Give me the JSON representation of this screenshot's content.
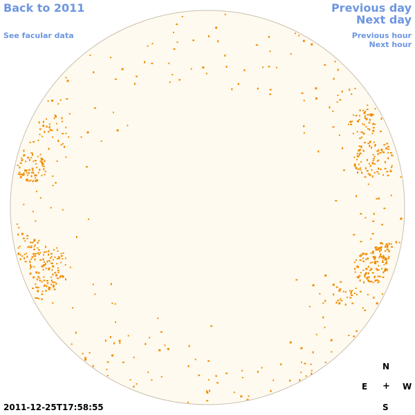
{
  "nav": {
    "back_year": "Back to 2011",
    "see_facular": "See facular data",
    "previous_day": "Previous day",
    "next_day": "Next day",
    "previous_hour": "Previous hour",
    "next_hour": "Next hour"
  },
  "compass": {
    "north": "N",
    "east": "E",
    "center": "+",
    "west": "W",
    "south": "S"
  },
  "timestamp": "2011-12-25T17:58:55",
  "colors": {
    "link": "#6d96e0",
    "disk_fill": "#fffaef",
    "disk_outline": "#c8bfae",
    "facula": "#f08c00"
  }
}
